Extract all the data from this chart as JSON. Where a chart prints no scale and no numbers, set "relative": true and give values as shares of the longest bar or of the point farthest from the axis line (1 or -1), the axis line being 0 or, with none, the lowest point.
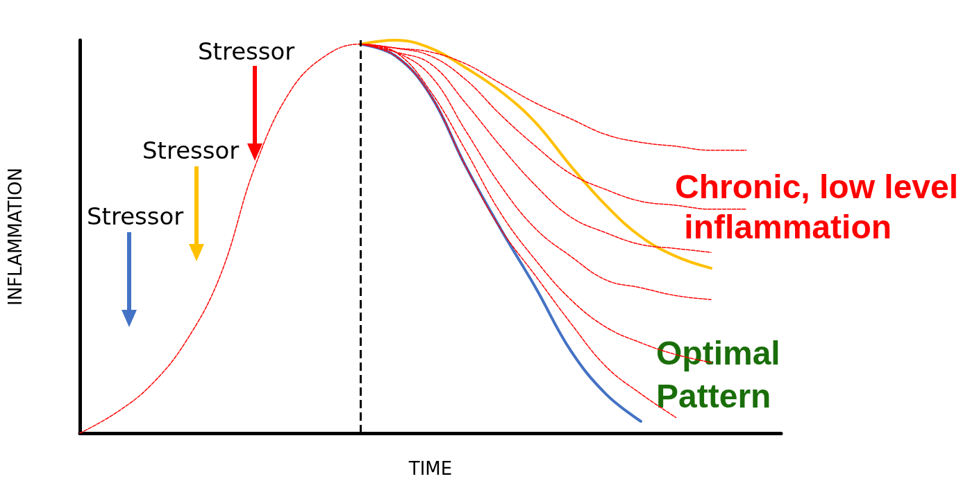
{
  "chart_data": {
    "type": "line",
    "relative": true,
    "xlabel": "TIME",
    "ylabel": "INFLAMMATION",
    "marker": "none",
    "categories": [
      null,
      null,
      null,
      null,
      null,
      null,
      null,
      null,
      null,
      null,
      null,
      null,
      null,
      null,
      null,
      null,
      null,
      null,
      null,
      null,
      null
    ],
    "series": [
      {
        "color": "#4472c4",
        "line_style": "solid",
        "values": [
          null,
          null,
          null,
          null,
          null,
          null,
          null,
          null,
          0.99,
          0.96,
          0.86,
          0.68,
          0.52,
          0.37,
          0.21,
          0.1,
          0.03,
          null,
          null,
          null,
          null
        ]
      },
      {
        "color": "#ff0000",
        "line_style": "dashed",
        "values": [
          0,
          0.05,
          0.12,
          0.23,
          0.4,
          0.68,
          0.87,
          0.96,
          0.99,
          0.98,
          0.97,
          0.94,
          0.89,
          0.84,
          0.8,
          0.76,
          0.74,
          0.73,
          0.72,
          0.72,
          null
        ]
      },
      {
        "color": "#ff0000",
        "line_style": "dashed",
        "values": [
          null,
          null,
          null,
          null,
          null,
          null,
          null,
          null,
          0.99,
          0.98,
          0.96,
          0.9,
          0.81,
          0.73,
          0.66,
          0.62,
          0.59,
          0.58,
          0.57,
          0.57,
          null
        ]
      },
      {
        "color": "#ff0000",
        "line_style": "dashed",
        "values": [
          null,
          null,
          null,
          null,
          null,
          null,
          null,
          null,
          0.99,
          0.97,
          0.94,
          0.84,
          0.73,
          0.63,
          0.55,
          0.51,
          0.48,
          0.47,
          0.46,
          null,
          null
        ]
      },
      {
        "color": "#ff0000",
        "line_style": "dashed",
        "values": [
          null,
          null,
          null,
          null,
          null,
          null,
          null,
          null,
          0.99,
          0.97,
          0.91,
          0.77,
          0.63,
          0.52,
          0.45,
          0.39,
          0.37,
          0.35,
          0.34,
          null,
          null
        ]
      },
      {
        "color": "#ff0000",
        "line_style": "dashed",
        "values": [
          null,
          null,
          null,
          null,
          null,
          null,
          null,
          null,
          0.99,
          0.97,
          0.87,
          0.72,
          0.56,
          0.44,
          0.34,
          0.27,
          0.23,
          0.2,
          0.18,
          null,
          null
        ]
      },
      {
        "color": "#ff0000",
        "line_style": "dashed",
        "values": [
          null,
          null,
          null,
          null,
          null,
          null,
          null,
          null,
          0.99,
          0.96,
          0.86,
          0.68,
          0.52,
          0.4,
          0.28,
          0.17,
          0.1,
          0.04,
          null,
          null,
          null
        ]
      },
      {
        "color": "#ffc000",
        "line_style": "solid",
        "values": [
          null,
          null,
          null,
          null,
          null,
          null,
          null,
          null,
          0.99,
          1.0,
          0.98,
          0.93,
          0.87,
          0.79,
          0.68,
          0.58,
          0.5,
          0.45,
          0.42,
          null,
          null
        ]
      }
    ],
    "annotations": [
      "Stressor",
      "Stressor",
      "Stressor",
      "Chronic, low level inflammation",
      "Optimal Pattern"
    ]
  }
}
